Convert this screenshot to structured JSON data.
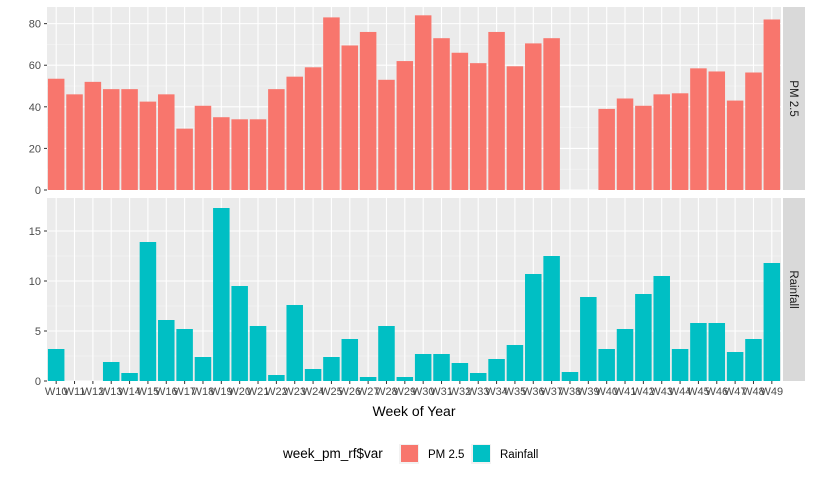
{
  "chart_data": {
    "type": "bar",
    "xlabel": "Week of Year",
    "categories": [
      "W10",
      "W11",
      "W12",
      "W13",
      "W14",
      "W15",
      "W16",
      "W17",
      "W18",
      "W19",
      "W20",
      "W21",
      "W22",
      "W23",
      "W24",
      "W25",
      "W26",
      "W27",
      "W28",
      "W29",
      "W30",
      "W31",
      "W32",
      "W33",
      "W34",
      "W35",
      "W36",
      "W37",
      "W38",
      "W39",
      "W40",
      "W41",
      "W42",
      "W43",
      "W44",
      "W45",
      "W46",
      "W47",
      "W48",
      "W49"
    ],
    "legend": {
      "title": "week_pm_rf$var",
      "position": "bottom"
    },
    "grid": true,
    "panels": [
      {
        "strip": "PM 2.5",
        "color": "#F8766D",
        "ylim": [
          0,
          88
        ],
        "yticks": [
          0,
          20,
          40,
          60,
          80
        ],
        "values": [
          53.5,
          46,
          52,
          48.5,
          48.5,
          42.5,
          46,
          29.5,
          40.5,
          35,
          34,
          34,
          48.5,
          54.5,
          59,
          83,
          69.5,
          76,
          53,
          62,
          84,
          73,
          66,
          61,
          76,
          59.5,
          70.5,
          73,
          null,
          null,
          39,
          44,
          40.5,
          46,
          46.5,
          58.5,
          57,
          43,
          56.5,
          82
        ]
      },
      {
        "strip": "Rainfall",
        "color": "#00BFC4",
        "ylim": [
          0,
          18.3
        ],
        "yticks": [
          0,
          5,
          10,
          15
        ],
        "values": [
          3.2,
          0,
          0,
          1.9,
          0.8,
          13.9,
          6.1,
          5.2,
          2.4,
          17.3,
          9.5,
          5.5,
          0.6,
          7.6,
          1.2,
          2.4,
          4.2,
          0.4,
          5.5,
          0.4,
          2.7,
          2.7,
          1.8,
          0.8,
          2.2,
          3.6,
          10.7,
          12.5,
          0.9,
          8.4,
          3.2,
          5.2,
          8.7,
          10.5,
          3.2,
          5.8,
          5.8,
          2.9,
          4.2,
          11.8
        ]
      }
    ],
    "series": [
      {
        "name": "PM 2.5",
        "color": "#F8766D"
      },
      {
        "name": "Rainfall",
        "color": "#00BFC4"
      }
    ]
  }
}
